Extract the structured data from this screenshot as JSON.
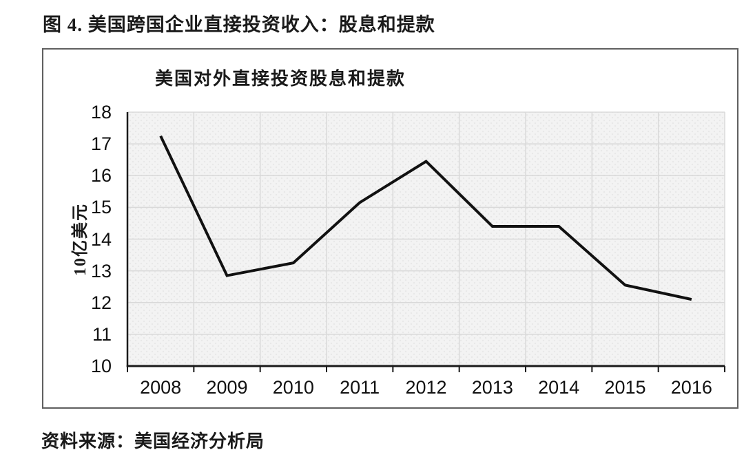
{
  "figure_title": "图 4. 美国跨国企业直接投资收入：股息和提款",
  "source_note": "资料来源：美国经济分析局",
  "chart_data": {
    "type": "line",
    "title": "美国对外直接投资股息和提款",
    "xlabel": "",
    "ylabel": "10亿美元",
    "categories": [
      "2008",
      "2009",
      "2010",
      "2011",
      "2012",
      "2013",
      "2014",
      "2015",
      "2016"
    ],
    "series": [
      {
        "name": "股息和提款",
        "values": [
          17.25,
          12.85,
          13.25,
          15.15,
          16.45,
          14.4,
          14.4,
          12.55,
          12.1
        ]
      }
    ],
    "ylim": [
      10,
      18
    ],
    "ytick_step": 1,
    "grid": true,
    "legend": "none",
    "colors": {
      "line": "#111111",
      "grid": "#d9d9d9",
      "axis": "#1a1a1a",
      "plot_bg": "#f3f3f3",
      "plot_dot": "#e7e7e7",
      "frame_border": "#5f5f5f",
      "text": "#1a1a1a"
    }
  }
}
